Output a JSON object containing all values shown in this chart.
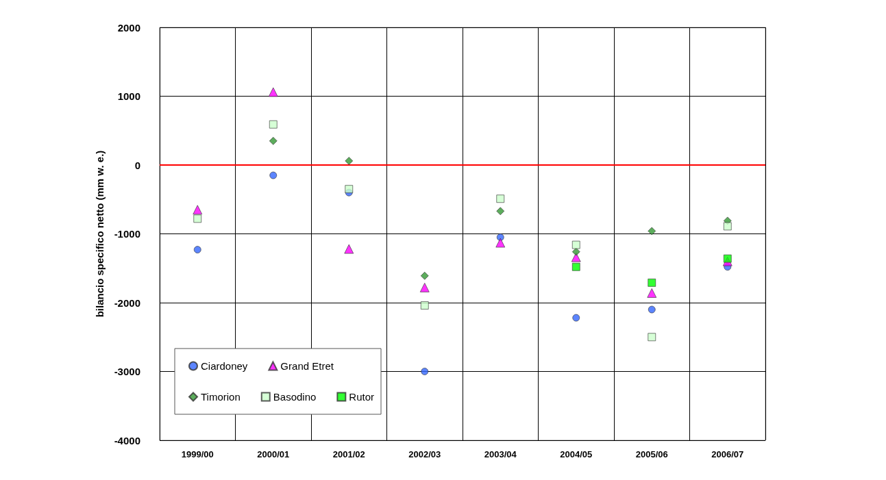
{
  "chart_data": {
    "type": "scatter",
    "ylabel": "bilancio specifico netto (mm w. e.)",
    "categories": [
      "1999/00",
      "2000/01",
      "2001/02",
      "2002/03",
      "2003/04",
      "2004/05",
      "2005/06",
      "2006/07"
    ],
    "series": [
      {
        "name": "Ciardoney",
        "color": "#3366ff",
        "marker": "circle",
        "values": [
          -1230,
          -150,
          -400,
          -3000,
          -1050,
          -2220,
          -2100,
          -1480
        ]
      },
      {
        "name": "Grand Etret",
        "color": "#ff00ff",
        "marker": "triangle",
        "values": [
          -650,
          1060,
          -1220,
          -1780,
          -1130,
          -1340,
          -1860,
          -1400
        ]
      },
      {
        "name": "Timorion",
        "color": "#339933",
        "marker": "diamond",
        "values": [
          null,
          350,
          60,
          -1610,
          -670,
          -1260,
          -960,
          -810
        ]
      },
      {
        "name": "Basodino",
        "color": "#ccffcc",
        "marker": "square",
        "values": [
          -780,
          590,
          -350,
          -2040,
          -490,
          -1160,
          -2500,
          -890
        ]
      },
      {
        "name": "Rutor",
        "color": "#00ff00",
        "marker": "square",
        "values": [
          null,
          null,
          null,
          null,
          null,
          -1480,
          -1710,
          -1360
        ]
      }
    ],
    "ylim": [
      -4000,
      2000
    ],
    "yticks": [
      -4000,
      -3000,
      -2000,
      -1000,
      0,
      1000,
      2000
    ],
    "ref_lines": [
      {
        "axis": "y",
        "value": 0,
        "color": "#ff0000"
      }
    ],
    "grid": true,
    "legend": "bottom left"
  }
}
